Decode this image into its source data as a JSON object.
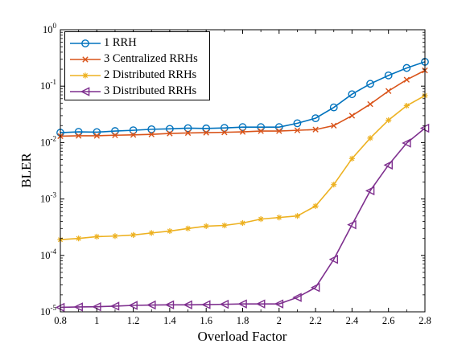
{
  "chart_data": {
    "type": "line",
    "xlabel": "Overload Factor",
    "ylabel": "BLER",
    "xlim": [
      0.8,
      2.8
    ],
    "ylim_log10": [
      -5,
      0
    ],
    "yscale": "log",
    "x_ticks": [
      "0.8",
      "1",
      "1.2",
      "1.4",
      "1.6",
      "1.8",
      "2",
      "2.2",
      "2.4",
      "2.6",
      "2.8"
    ],
    "y_ticks": [
      {
        "base": "10",
        "exp": "0"
      },
      {
        "base": "10",
        "exp": "-1"
      },
      {
        "base": "10",
        "exp": "-2"
      },
      {
        "base": "10",
        "exp": "-3"
      },
      {
        "base": "10",
        "exp": "-4"
      },
      {
        "base": "10",
        "exp": "-5"
      }
    ],
    "grid": false,
    "legend_position": "top-left",
    "x": [
      0.8,
      0.9,
      1.0,
      1.1,
      1.2,
      1.3,
      1.4,
      1.5,
      1.6,
      1.7,
      1.8,
      1.9,
      2.0,
      2.1,
      2.2,
      2.3,
      2.4,
      2.5,
      2.6,
      2.7,
      2.8
    ],
    "series": [
      {
        "name": "1 RRH",
        "color": "#0072BD",
        "marker": "circle",
        "values": [
          0.015,
          0.0155,
          0.0153,
          0.016,
          0.0165,
          0.0172,
          0.0175,
          0.018,
          0.0178,
          0.0182,
          0.0188,
          0.0188,
          0.0188,
          0.022,
          0.027,
          0.042,
          0.072,
          0.11,
          0.155,
          0.21,
          0.27
        ]
      },
      {
        "name": "3 Centralized RRHs",
        "color": "#D95319",
        "marker": "x",
        "values": [
          0.013,
          0.0132,
          0.0132,
          0.0135,
          0.0137,
          0.014,
          0.0145,
          0.0148,
          0.015,
          0.0152,
          0.0155,
          0.016,
          0.016,
          0.0165,
          0.017,
          0.02,
          0.03,
          0.048,
          0.082,
          0.13,
          0.19
        ]
      },
      {
        "name": "2 Distributed RRHs",
        "color": "#EDB120",
        "marker": "asterisk",
        "values": [
          0.00019,
          0.0002,
          0.000215,
          0.00022,
          0.00023,
          0.00025,
          0.00027,
          0.0003,
          0.00033,
          0.00034,
          0.000375,
          0.00044,
          0.00047,
          0.0005,
          0.00075,
          0.0018,
          0.0052,
          0.012,
          0.025,
          0.045,
          0.068
        ]
      },
      {
        "name": "3 Distributed RRHs",
        "color": "#7E2F8E",
        "marker": "triangle-left",
        "values": [
          1.2e-05,
          1.22e-05,
          1.23e-05,
          1.26e-05,
          1.3e-05,
          1.32e-05,
          1.33e-05,
          1.33e-05,
          1.34e-05,
          1.36e-05,
          1.38e-05,
          1.38e-05,
          1.38e-05,
          1.8e-05,
          2.7e-05,
          8.5e-05,
          0.00035,
          0.0014,
          0.004,
          0.0098,
          0.018
        ]
      }
    ]
  }
}
